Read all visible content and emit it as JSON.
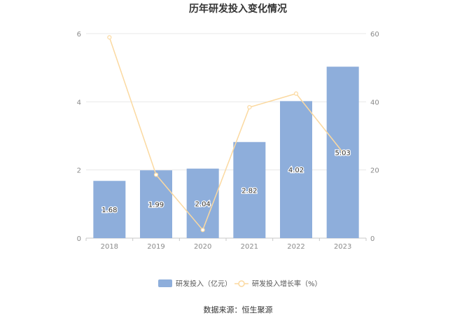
{
  "title": "历年研发投入变化情况",
  "source": "数据来源：恒生聚源",
  "colors": {
    "bar": "#8eaedb",
    "line": "#fbd9a0",
    "grid": "#e8e8e8",
    "axis_text": "#8a8a8a",
    "title": "#333333",
    "label": "#333333"
  },
  "chart_data": {
    "type": "bar",
    "title": "历年研发投入变化情况",
    "categories": [
      "2018",
      "2019",
      "2020",
      "2021",
      "2022",
      "2023"
    ],
    "series": [
      {
        "name": "研发投入（亿元）",
        "type": "bar",
        "axis": "left",
        "values": [
          1.68,
          1.99,
          2.04,
          2.82,
          4.02,
          5.03
        ],
        "labels": [
          "1.68",
          "1.99",
          "2.04",
          "2.82",
          "4.02",
          "5.03"
        ]
      },
      {
        "name": "研发投入增长率（%）",
        "type": "line",
        "axis": "right",
        "values": [
          58.9,
          18.6,
          2.4,
          38.4,
          42.4,
          25.2
        ]
      }
    ],
    "y_left": {
      "lim": [
        0,
        6
      ],
      "ticks": [
        "0",
        "2",
        "4",
        "6"
      ]
    },
    "y_right": {
      "lim": [
        0,
        60
      ],
      "ticks": [
        "0",
        "20",
        "40",
        "60"
      ]
    },
    "grid": true,
    "legend_position": "bottom"
  }
}
